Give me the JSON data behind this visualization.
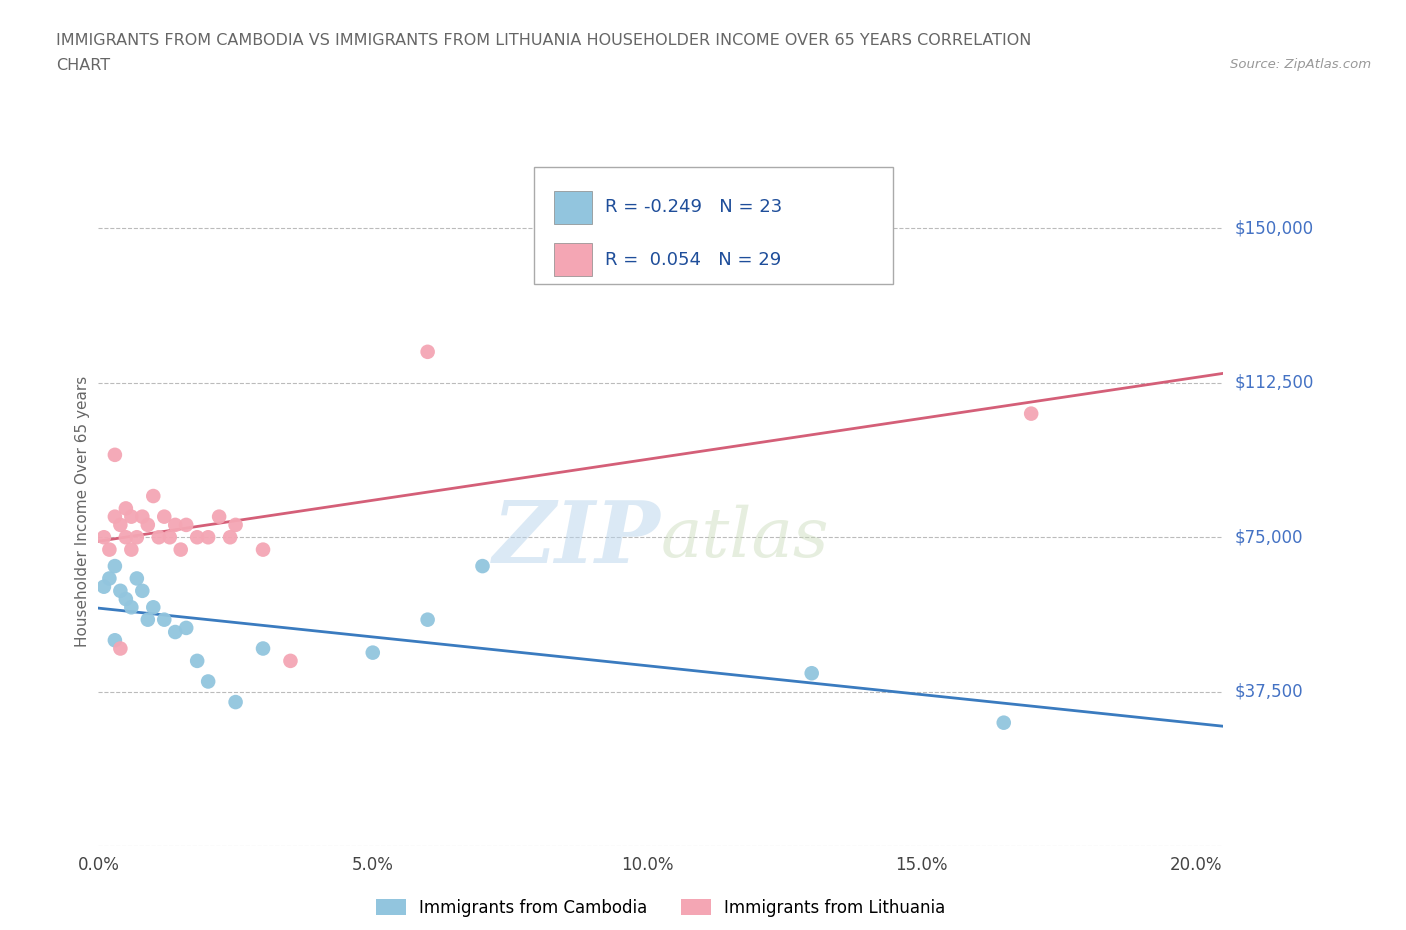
{
  "title_line1": "IMMIGRANTS FROM CAMBODIA VS IMMIGRANTS FROM LITHUANIA HOUSEHOLDER INCOME OVER 65 YEARS CORRELATION",
  "title_line2": "CHART",
  "source": "Source: ZipAtlas.com",
  "watermark_zip": "ZIP",
  "watermark_atlas": "atlas",
  "ylabel": "Householder Income Over 65 years",
  "xlim": [
    0.0,
    0.205
  ],
  "ylim": [
    0,
    162500
  ],
  "yticks": [
    0,
    37500,
    75000,
    112500,
    150000
  ],
  "ytick_labels": [
    "",
    "$37,500",
    "$75,000",
    "$112,500",
    "$150,000"
  ],
  "xticks": [
    0.0,
    0.05,
    0.1,
    0.15,
    0.2
  ],
  "xtick_labels": [
    "0.0%",
    "5.0%",
    "10.0%",
    "15.0%",
    "20.0%"
  ],
  "cambodia_color": "#92c5de",
  "lithuania_color": "#f4a6b4",
  "cambodia_line_color": "#3a7bbf",
  "lithuania_line_color": "#d45f78",
  "R_cambodia": -0.249,
  "N_cambodia": 23,
  "R_lithuania": 0.054,
  "N_lithuania": 29,
  "cambodia_x": [
    0.001,
    0.002,
    0.003,
    0.004,
    0.005,
    0.006,
    0.007,
    0.008,
    0.009,
    0.01,
    0.012,
    0.014,
    0.016,
    0.018,
    0.02,
    0.025,
    0.03,
    0.05,
    0.06,
    0.07,
    0.13,
    0.165,
    0.003
  ],
  "cambodia_y": [
    63000,
    65000,
    68000,
    62000,
    60000,
    58000,
    65000,
    62000,
    55000,
    58000,
    55000,
    52000,
    53000,
    45000,
    40000,
    35000,
    48000,
    47000,
    55000,
    68000,
    42000,
    30000,
    50000
  ],
  "lithuania_x": [
    0.001,
    0.002,
    0.003,
    0.003,
    0.004,
    0.005,
    0.005,
    0.006,
    0.006,
    0.007,
    0.008,
    0.009,
    0.01,
    0.011,
    0.012,
    0.013,
    0.014,
    0.015,
    0.016,
    0.018,
    0.02,
    0.022,
    0.024,
    0.025,
    0.03,
    0.035,
    0.06,
    0.17,
    0.004
  ],
  "lithuania_y": [
    75000,
    72000,
    95000,
    80000,
    78000,
    75000,
    82000,
    72000,
    80000,
    75000,
    80000,
    78000,
    85000,
    75000,
    80000,
    75000,
    78000,
    72000,
    78000,
    75000,
    75000,
    80000,
    75000,
    78000,
    72000,
    45000,
    120000,
    105000,
    48000
  ],
  "background_color": "#ffffff",
  "grid_color": "#bbbbbb",
  "title_color": "#666666",
  "right_label_color": "#4472c4",
  "xtick_color": "#444444",
  "legend_text_color": "#1f4e9a"
}
